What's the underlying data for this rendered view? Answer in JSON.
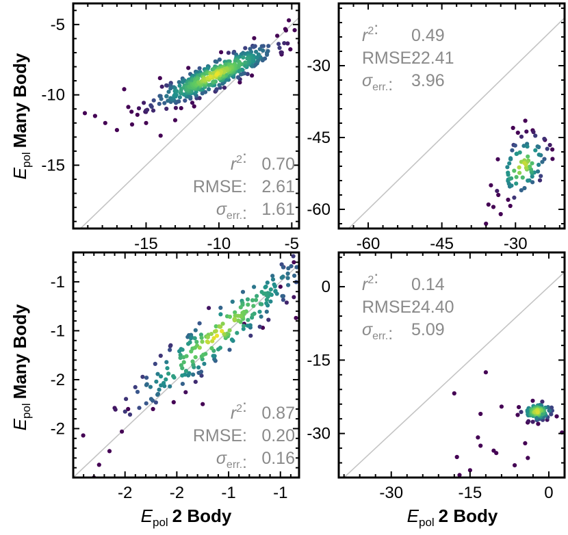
{
  "figure": {
    "ylabel": {
      "symbol": "E",
      "sub": "pol",
      "text": "Many Body"
    },
    "xlabel": {
      "symbol": "E",
      "sub": "pol",
      "text": "2 Body"
    }
  },
  "colormap": [
    "#440154",
    "#3b528b",
    "#21918c",
    "#5ec962",
    "#fde725"
  ],
  "chart_data": [
    {
      "type": "scatter",
      "panel": "top-left",
      "xlim": [
        -20,
        -4.5
      ],
      "ylim": [
        -19.5,
        -3.5
      ],
      "xticks": [
        -15,
        -10,
        -5
      ],
      "yticks": [
        -15,
        -10,
        -5
      ],
      "xtick_labels": [
        "-15",
        "-10",
        "-5"
      ],
      "ytick_labels": [
        "-15",
        "-10",
        "-5"
      ],
      "stats_position": "bottom-right",
      "stats": {
        "r2_label": "r",
        "r2_value": "0.70",
        "rmse_label": "RMSE:",
        "rmse_value": "2.61",
        "sigma_label": "σ",
        "sigma_sub": "err.",
        "sigma_value": "1.61"
      },
      "cloud": {
        "cx": -10.3,
        "cy": -8.6,
        "sx": 2.1,
        "sy": 1.1,
        "rho": 0.88,
        "n": 430,
        "seed": 11
      },
      "extra_points": [
        {
          "x": -19.2,
          "y": -11.3
        },
        {
          "x": -18.5,
          "y": -11.5
        },
        {
          "x": -17.8,
          "y": -12.0
        },
        {
          "x": -17.0,
          "y": -12.5
        },
        {
          "x": -16.0,
          "y": -11.2
        },
        {
          "x": -15.0,
          "y": -12.0
        },
        {
          "x": -14.0,
          "y": -12.9
        },
        {
          "x": -5.2,
          "y": -4.7
        },
        {
          "x": -4.8,
          "y": -5.4
        },
        {
          "x": -6.0,
          "y": -5.8
        },
        {
          "x": -16.5,
          "y": -9.6
        },
        {
          "x": -13.0,
          "y": -11.8
        }
      ]
    },
    {
      "type": "scatter",
      "panel": "top-right",
      "xlim": [
        -66,
        -20
      ],
      "ylim": [
        -64,
        -17
      ],
      "xticks": [
        -60,
        -45,
        -30
      ],
      "yticks": [
        -60,
        -45,
        -30
      ],
      "xtick_labels": [
        "-60",
        "-45",
        "-30"
      ],
      "ytick_labels": [
        "-60",
        "-45",
        "-30"
      ],
      "stats_position": "top-left",
      "stats": {
        "r2_label": "r",
        "r2_value": "0.49",
        "rmse_label": "RMSE:",
        "rmse_value": "22.41",
        "sigma_label": "σ",
        "sigma_sub": "err.",
        "sigma_value": "3.96"
      },
      "cloud": {
        "cx": -28.5,
        "cy": -51.0,
        "sx": 2.4,
        "sy": 3.0,
        "rho": 0.4,
        "n": 75,
        "seed": 23
      },
      "extra_points": [
        {
          "x": -36.0,
          "y": -63.0
        },
        {
          "x": -34.5,
          "y": -59.5
        },
        {
          "x": -33.0,
          "y": -61.0
        },
        {
          "x": -31.5,
          "y": -58.0
        },
        {
          "x": -28.0,
          "y": -41.5
        },
        {
          "x": -29.5,
          "y": -44.0
        },
        {
          "x": -30.5,
          "y": -43.0
        },
        {
          "x": -26.5,
          "y": -43.5
        },
        {
          "x": -24.0,
          "y": -45.5
        },
        {
          "x": -22.5,
          "y": -47.5
        },
        {
          "x": -35.5,
          "y": -59.0
        },
        {
          "x": -33.5,
          "y": -57.0
        }
      ]
    },
    {
      "type": "scatter",
      "panel": "bottom-left",
      "xlim": [
        -2.75,
        -0.57
      ],
      "ylim": [
        -2.75,
        -0.45
      ],
      "xticks": [
        -2.25,
        -1.75,
        -1.25,
        -0.75
      ],
      "yticks": [
        -2.25,
        -1.75,
        -1.25,
        -0.75
      ],
      "xtick_labels": [
        "-2",
        "-2",
        "-1",
        "-1"
      ],
      "ytick_labels": [
        "-2",
        "-2",
        "-1",
        "-1"
      ],
      "stats_position": "bottom-right",
      "stats": {
        "r2_label": "r",
        "r2_value": "0.87",
        "rmse_label": "RMSE:",
        "rmse_value": "0.20",
        "sigma_label": "σ",
        "sigma_sub": "err.",
        "sigma_value": "0.16"
      },
      "cloud": {
        "cx": -1.35,
        "cy": -1.28,
        "sx": 0.42,
        "sy": 0.38,
        "rho": 0.93,
        "n": 230,
        "seed": 37
      },
      "extra_points": [
        {
          "x": -2.55,
          "y": -2.75
        },
        {
          "x": -2.5,
          "y": -2.62
        },
        {
          "x": -2.4,
          "y": -2.48
        },
        {
          "x": -2.28,
          "y": -2.28
        },
        {
          "x": -2.22,
          "y": -2.05
        },
        {
          "x": -1.98,
          "y": -2.05
        },
        {
          "x": -1.78,
          "y": -1.98
        },
        {
          "x": -1.5,
          "y": -2.0
        },
        {
          "x": -0.72,
          "y": -0.6
        },
        {
          "x": -0.62,
          "y": -0.55
        },
        {
          "x": -0.75,
          "y": -0.8
        },
        {
          "x": -0.6,
          "y": -1.12
        },
        {
          "x": -1.1,
          "y": -1.18
        },
        {
          "x": -0.92,
          "y": -1.22
        }
      ]
    },
    {
      "type": "scatter",
      "panel": "bottom-right",
      "xlim": [
        -40,
        3
      ],
      "ylim": [
        -39,
        7
      ],
      "xticks": [
        -30,
        -15,
        0
      ],
      "yticks": [
        -30,
        -15,
        0
      ],
      "xtick_labels": [
        "-30",
        "-15",
        "0"
      ],
      "ytick_labels": [
        "-30",
        "-15",
        "0"
      ],
      "stats_position": "top-left",
      "stats": {
        "r2_label": "r",
        "r2_value": "0.14",
        "rmse_label": "RMSE:",
        "rmse_value": "24.40",
        "sigma_label": "σ",
        "sigma_sub": "err.",
        "sigma_value": "5.09"
      },
      "cloud": {
        "cx": -2.2,
        "cy": -25.5,
        "sx": 1.4,
        "sy": 0.9,
        "rho": 0.1,
        "n": 95,
        "seed": 53
      },
      "extra_points": [
        {
          "x": -12.0,
          "y": -17.5
        },
        {
          "x": -18.0,
          "y": -21.8
        },
        {
          "x": -13.0,
          "y": -26.0
        },
        {
          "x": -9.0,
          "y": -24.5
        },
        {
          "x": -13.5,
          "y": -30.8
        },
        {
          "x": -10.5,
          "y": -33.5
        },
        {
          "x": -10.0,
          "y": -34.0
        },
        {
          "x": -13.0,
          "y": -32.5
        },
        {
          "x": -17.5,
          "y": -34.8
        },
        {
          "x": -4.5,
          "y": -32.0
        },
        {
          "x": -4.0,
          "y": -35.0
        },
        {
          "x": -6.5,
          "y": -36.5
        },
        {
          "x": 2.5,
          "y": -29.8
        },
        {
          "x": -17.0,
          "y": -38.5
        },
        {
          "x": -15.0,
          "y": -37.5
        },
        {
          "x": 1.5,
          "y": -26.5
        }
      ]
    }
  ]
}
